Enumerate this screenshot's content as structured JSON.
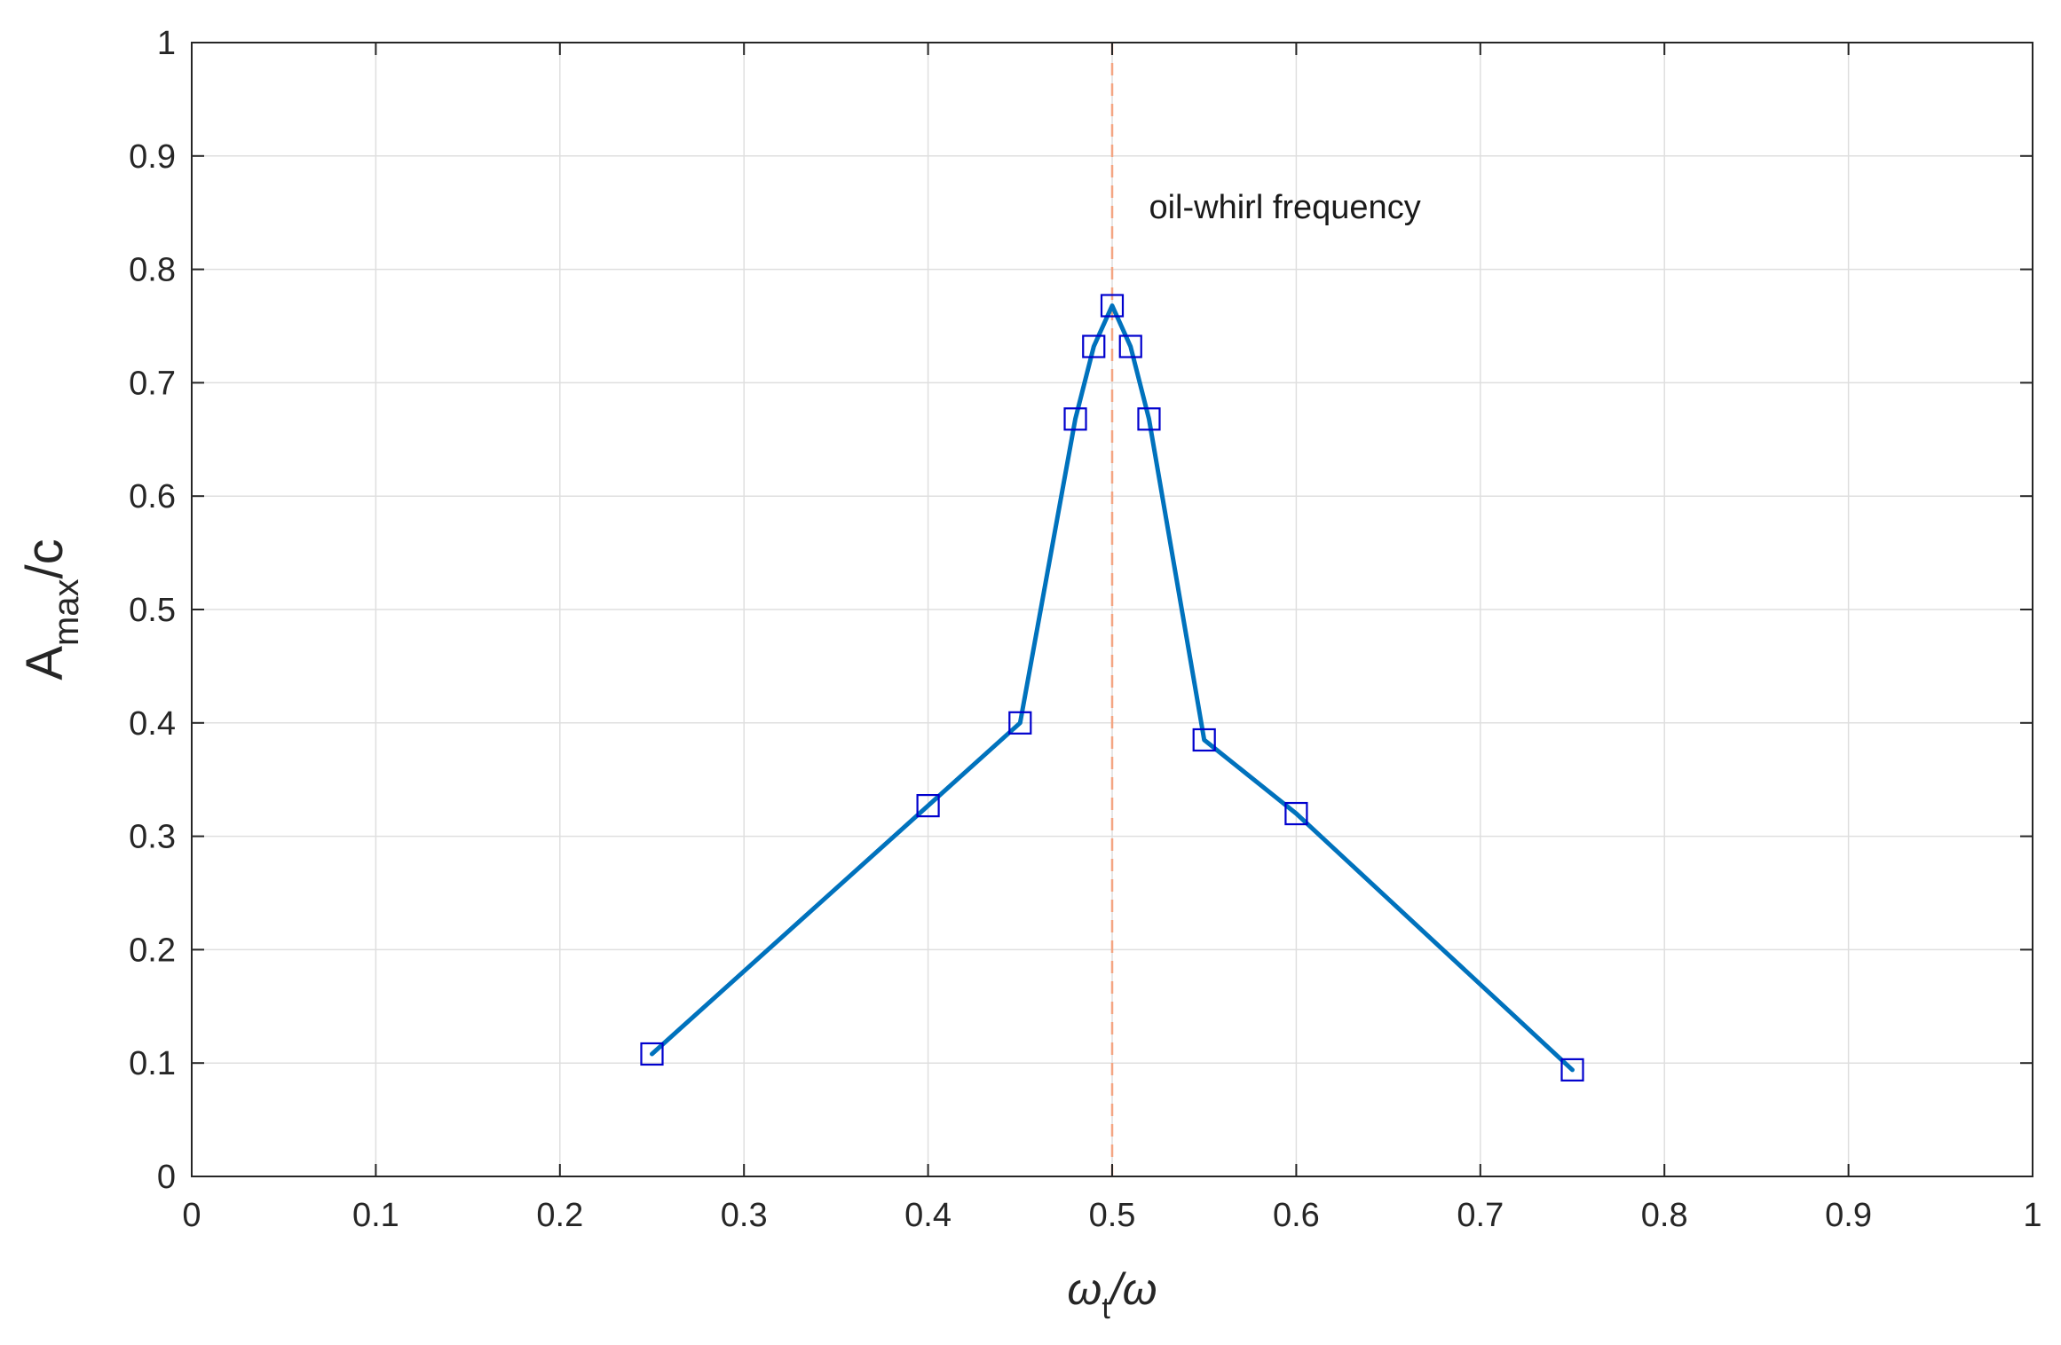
{
  "chart_data": {
    "type": "line",
    "title": "",
    "xlabel": {
      "main": "ω",
      "sub": "t",
      "rest": "/ω"
    },
    "ylabel": {
      "main": "A",
      "sub": "max",
      "rest": "/c"
    },
    "xlim": [
      0,
      1
    ],
    "ylim": [
      0,
      1
    ],
    "grid": true,
    "xticks": [
      0,
      0.1,
      0.2,
      0.3,
      0.4,
      0.5,
      0.6,
      0.7,
      0.8,
      0.9,
      1
    ],
    "yticks": [
      0,
      0.1,
      0.2,
      0.3,
      0.4,
      0.5,
      0.6,
      0.7,
      0.8,
      0.9,
      1
    ],
    "xtick_labels": [
      "0",
      "0.1",
      "0.2",
      "0.3",
      "0.4",
      "0.5",
      "0.6",
      "0.7",
      "0.8",
      "0.9",
      "1"
    ],
    "ytick_labels": [
      "0",
      "0.1",
      "0.2",
      "0.3",
      "0.4",
      "0.5",
      "0.6",
      "0.7",
      "0.8",
      "0.9",
      "1"
    ],
    "series": [
      {
        "x": [
          0.25,
          0.4,
          0.45,
          0.48,
          0.49,
          0.5,
          0.51,
          0.52,
          0.55,
          0.6,
          0.75
        ],
        "y": [
          0.108,
          0.327,
          0.4,
          0.668,
          0.732,
          0.768,
          0.732,
          0.668,
          0.385,
          0.32,
          0.094
        ],
        "line_color": "#0072BD",
        "marker": "square",
        "marker_color": "#0000CD"
      }
    ],
    "reference_line": {
      "x": 0.5,
      "style": "dashed",
      "color": "#F4A582"
    },
    "annotations": [
      {
        "text": "oil-whirl frequency",
        "x": 0.52,
        "y": 0.845
      }
    ],
    "colors": {
      "axis": "#262626",
      "grid": "#dfdfdf"
    }
  }
}
